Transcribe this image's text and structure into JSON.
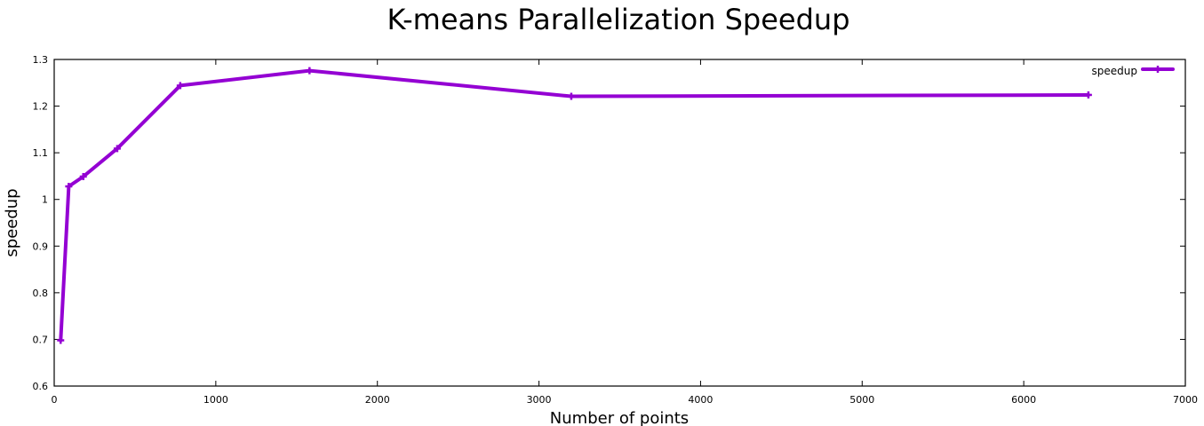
{
  "chart_data": {
    "type": "line",
    "title": "K-means Parallelization Speedup",
    "xlabel": "Number of points",
    "ylabel": "speedup",
    "xlim": [
      0,
      7000
    ],
    "ylim": [
      0.6,
      1.3
    ],
    "xticks": [
      0,
      1000,
      2000,
      3000,
      4000,
      5000,
      6000,
      7000
    ],
    "yticks": [
      0.6,
      0.7,
      0.8,
      0.9,
      1,
      1.1,
      1.2,
      1.3
    ],
    "xtick_labels": [
      "0",
      "1000",
      "2000",
      "3000",
      "4000",
      "5000",
      "6000",
      "7000"
    ],
    "ytick_labels": [
      "0.6",
      "0.7",
      "0.8",
      "0.9",
      "1",
      "1.1",
      "1.2",
      "1.3"
    ],
    "grid": false,
    "legend_position": "top-right",
    "series": [
      {
        "name": "speedup",
        "color": "#9400d3",
        "x": [
          40,
          90,
          180,
          390,
          780,
          1580,
          3200,
          6400
        ],
        "y": [
          0.698,
          1.028,
          1.049,
          1.109,
          1.244,
          1.276,
          1.221,
          1.224
        ]
      }
    ]
  }
}
